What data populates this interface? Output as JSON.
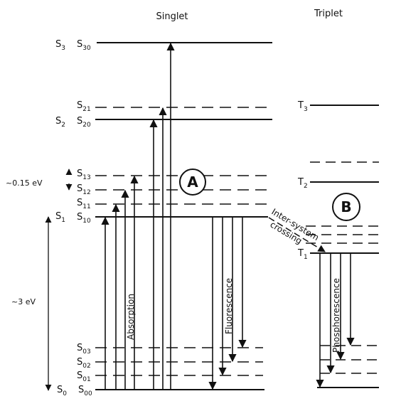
{
  "headers": {
    "singlet": "Singlet",
    "triplet": "Triplet"
  },
  "states": {
    "s0": {
      "main": "S",
      "sub": "0"
    },
    "s1": {
      "main": "S",
      "sub": "1"
    },
    "s2": {
      "main": "S",
      "sub": "2"
    },
    "s3": {
      "main": "S",
      "sub": "3"
    },
    "s00": {
      "main": "S",
      "sub": "00"
    },
    "s01": {
      "main": "S",
      "sub": "01"
    },
    "s02": {
      "main": "S",
      "sub": "02"
    },
    "s03": {
      "main": "S",
      "sub": "03"
    },
    "s10": {
      "main": "S",
      "sub": "10"
    },
    "s11": {
      "main": "S",
      "sub": "11"
    },
    "s12": {
      "main": "S",
      "sub": "12"
    },
    "s13": {
      "main": "S",
      "sub": "13"
    },
    "s20": {
      "main": "S",
      "sub": "20"
    },
    "s21": {
      "main": "S",
      "sub": "21"
    },
    "s30": {
      "main": "S",
      "sub": "30"
    },
    "t1": {
      "main": "T",
      "sub": "1"
    },
    "t2": {
      "main": "T",
      "sub": "2"
    },
    "t3": {
      "main": "T",
      "sub": "3"
    }
  },
  "energies": {
    "vib_spacing": "~0.15 eV",
    "gap": "~3 eV"
  },
  "processes": {
    "absorption": "Absorption",
    "fluorescence": "Fluorescence",
    "intersystem_line1": "Inter-system",
    "intersystem_line2": "crossing",
    "phosphorescence": "Phosphorescence"
  },
  "markers": {
    "a": "A",
    "b": "B"
  }
}
